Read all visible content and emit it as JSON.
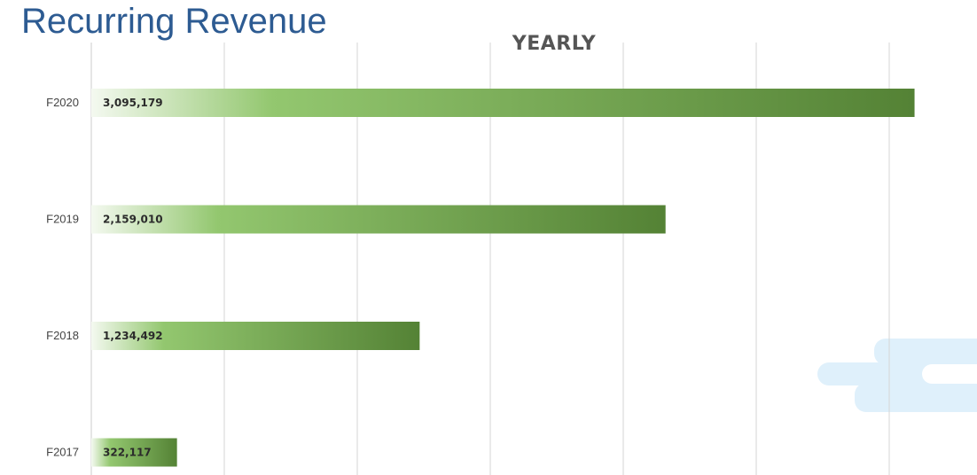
{
  "page_title": "Recurring Revenue",
  "chart_data": {
    "type": "bar",
    "orientation": "horizontal",
    "title": "YEARLY",
    "categories": [
      "F2020",
      "F2019",
      "F2018",
      "F2017"
    ],
    "values": [
      3095179,
      2159010,
      1234492,
      322117
    ],
    "value_labels": [
      "3,095,179",
      "2,159,010",
      "1,234,492",
      "322,117"
    ],
    "xlim": [
      0,
      3500000
    ],
    "grid": "vertical",
    "legend": "none",
    "bar_color_start": "#f4f9f0",
    "bar_color_mid": "#93c76f",
    "bar_color_end": "#548235",
    "grid_color": "#d6d6d6"
  }
}
